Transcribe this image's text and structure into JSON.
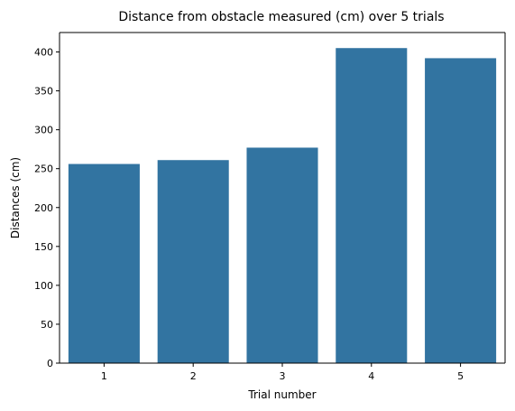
{
  "chart_data": {
    "type": "bar",
    "title": "Distance from obstacle measured (cm) over 5 trials",
    "xlabel": "Trial number",
    "ylabel": "Distances (cm)",
    "categories": [
      "1",
      "2",
      "3",
      "4",
      "5"
    ],
    "values": [
      256,
      261,
      277,
      405,
      392
    ],
    "ylim": [
      0,
      425
    ],
    "yticks": [
      0,
      50,
      100,
      150,
      200,
      250,
      300,
      350,
      400
    ],
    "grid": false,
    "bar_color": "#3274a1"
  }
}
